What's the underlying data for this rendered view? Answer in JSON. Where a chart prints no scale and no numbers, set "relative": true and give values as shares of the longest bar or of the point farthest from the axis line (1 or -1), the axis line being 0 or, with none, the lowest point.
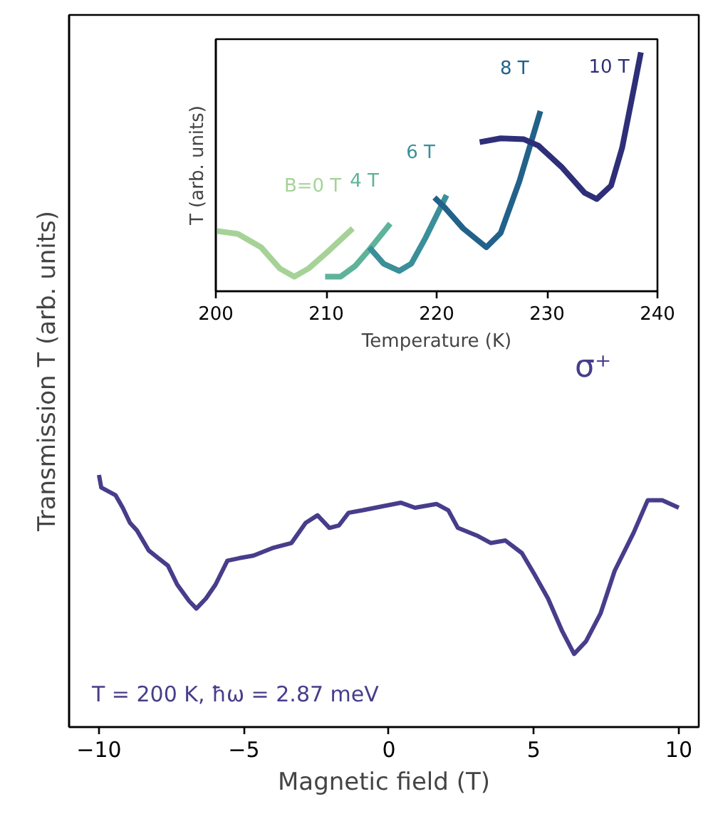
{
  "chart_data": [
    {
      "type": "line",
      "relative": true,
      "xlabel": "Magnetic field (T)",
      "ylabel": "Transmission T (arb. units)",
      "xlim": [
        -11.03,
        10.69
      ],
      "xticks": [
        {
          "value": -10,
          "label": "−10"
        },
        {
          "value": -5,
          "label": "−5"
        },
        0,
        5,
        10
      ],
      "tick_labels": "x",
      "annotations": [
        "σ⁺",
        "T = 200 K, ħω = 2.87 meV"
      ],
      "series": [
        {
          "color": "#473d8b",
          "x": [
            -10,
            -9.92,
            -9.43,
            -9.18,
            -8.93,
            -8.69,
            -8.28,
            -7.95,
            -7.62,
            -7.3,
            -6.89,
            -6.64,
            -6.31,
            -5.98,
            -5.57,
            -5.16,
            -4.67,
            -4.02,
            -3.36,
            -2.87,
            -2.46,
            -2.05,
            -1.72,
            -1.39,
            -0.9,
            -0.25,
            0.41,
            0.9,
            1.64,
            2.05,
            2.38,
            3.03,
            3.52,
            4.02,
            4.59,
            5.0,
            5.49,
            5.98,
            6.39,
            6.8,
            7.3,
            7.79,
            8.44,
            8.93,
            9.43,
            10
          ],
          "values": [
            1.0,
            0.95,
            0.92,
            0.87,
            0.81,
            0.78,
            0.7,
            0.67,
            0.64,
            0.565,
            0.5,
            0.47,
            0.51,
            0.565,
            0.66,
            0.67,
            0.68,
            0.71,
            0.73,
            0.81,
            0.84,
            0.79,
            0.8,
            0.85,
            0.86,
            0.875,
            0.89,
            0.87,
            0.885,
            0.86,
            0.79,
            0.76,
            0.73,
            0.74,
            0.69,
            0.61,
            0.51,
            0.38,
            0.29,
            0.34,
            0.45,
            0.62,
            0.77,
            0.9,
            0.9,
            0.87
          ]
        }
      ]
    },
    {
      "type": "line",
      "relative": true,
      "xlabel": "Temperature (K)",
      "ylabel": "T (arb. units)",
      "xlim": [
        200,
        240
      ],
      "xticks": [
        200,
        210,
        220,
        230,
        240
      ],
      "tick_labels": "x",
      "series": [
        {
          "name": "B=0 T",
          "color": "#a6d297",
          "x": [
            200,
            202.0,
            204.1,
            205.8,
            207.1,
            208.4,
            210.1,
            212.4
          ],
          "values": [
            0.253,
            0.24,
            0.184,
            0.095,
            0.061,
            0.095,
            0.164,
            0.263
          ]
        },
        {
          "name": "4 T",
          "color": "#5fb39a",
          "x": [
            209.9,
            211.3,
            212.6,
            213.9,
            215.8
          ],
          "values": [
            0.061,
            0.061,
            0.105,
            0.174,
            0.283
          ]
        },
        {
          "name": "6 T",
          "color": "#3a8f99",
          "x": [
            213.9,
            215.2,
            216.6,
            217.7,
            219.0,
            220.9
          ],
          "values": [
            0.184,
            0.115,
            0.085,
            0.115,
            0.224,
            0.402
          ]
        },
        {
          "name": "8 T",
          "color": "#22628a",
          "x": [
            219.8,
            220.7,
            222.4,
            224.5,
            225.8,
            227.5,
            229.4
          ],
          "values": [
            0.392,
            0.352,
            0.263,
            0.184,
            0.244,
            0.461,
            0.754
          ]
        },
        {
          "name": "10 T",
          "color": "#2e2f78",
          "x": [
            223.9,
            225.8,
            227.9,
            229.2,
            231.3,
            233.4,
            234.5,
            235.8,
            236.8,
            237.9,
            238.5
          ],
          "values": [
            0.624,
            0.64,
            0.636,
            0.61,
            0.521,
            0.412,
            0.386,
            0.442,
            0.6,
            0.857,
            1.0
          ]
        }
      ]
    }
  ]
}
